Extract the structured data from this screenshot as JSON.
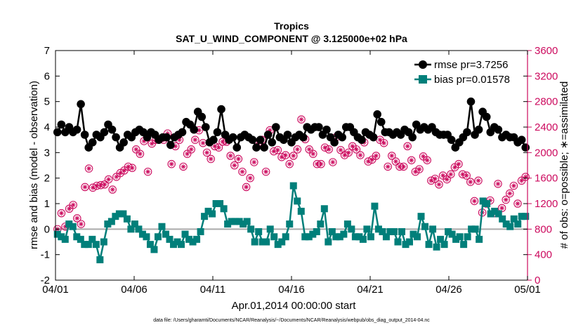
{
  "chart_data": {
    "type": "line",
    "title": "Tropics",
    "subtitle": "SAT_U_WIND_COMPONENT @ 3.125000e+02 hPa",
    "xlabel": "Apr.01,2014 00:00:00 start",
    "ylabel": "rmse and bias (model - observation)",
    "ylabel_right": "# of obs: o=possible; ∗=assimilated",
    "footnote": "data file: /Users/gharamti/Documents/NCAR/Reanalysis/~/Documents/NCAR/Reanalysis/webpub/obs_diag_output_2014-04.nc",
    "xlim": [
      0,
      30
    ],
    "ylim": [
      -2,
      7
    ],
    "ylim_right": [
      0,
      3600
    ],
    "x_ticks": [
      0,
      5,
      10,
      15,
      20,
      25,
      30
    ],
    "x_tick_labels": [
      "04/01",
      "04/06",
      "04/11",
      "04/16",
      "04/21",
      "04/26",
      "05/01"
    ],
    "y_ticks": [
      -2,
      -1,
      0,
      1,
      2,
      3,
      4,
      5,
      6,
      7
    ],
    "y_tick_labels": [
      "-2",
      "-1",
      "0",
      "1",
      "2",
      "3",
      "4",
      "5",
      "6",
      "7"
    ],
    "y_right_ticks": [
      0,
      400,
      800,
      1200,
      1600,
      2000,
      2400,
      2800,
      3200,
      3600
    ],
    "y_right_tick_labels": [
      "0",
      "400",
      "800",
      "1200",
      "1600",
      "2000",
      "2400",
      "2800",
      "3200",
      "3600"
    ],
    "series": [
      {
        "name": "rmse pr=3.7256",
        "color": "#000000",
        "values": [
          3.8,
          4.1,
          3.8,
          4.0,
          3.8,
          3.9,
          4.9,
          3.7,
          3.2,
          3.4,
          3.7,
          3.6,
          3.8,
          4.1,
          3.9,
          3.6,
          3.2,
          3.4,
          3.7,
          3.6,
          3.8,
          3.9,
          3.8,
          3.6,
          3.8,
          3.7,
          3.5,
          3.6,
          3.6,
          3.3,
          3.6,
          3.7,
          3.8,
          4.2,
          4.1,
          3.9,
          4.6,
          4.4,
          4.0,
          3.4,
          3.5,
          3.8,
          4.7,
          3.7,
          3.5,
          3.6,
          3.2,
          3.6,
          3.7,
          3.6,
          3.5,
          3.2,
          3.5,
          3.2,
          3.7,
          3.4,
          4.0,
          3.6,
          3.5,
          3.7,
          3.4,
          3.6,
          3.7,
          3.6,
          4.0,
          3.9,
          4.0,
          4.0,
          3.7,
          3.9,
          3.6,
          3.4,
          3.7,
          3.6,
          4.0,
          4.0,
          3.8,
          3.6,
          3.5,
          3.8,
          3.7,
          3.6,
          4.5,
          4.2,
          3.8,
          3.8,
          3.7,
          3.8,
          3.7,
          3.9,
          3.8,
          3.6,
          4.1,
          3.9,
          4.0,
          3.9,
          4.0,
          3.8,
          3.7,
          3.7,
          3.7,
          3.5,
          3.2,
          3.4,
          3.6,
          3.8,
          5.0,
          3.7,
          3.9,
          4.6,
          4.4,
          3.8,
          4.0,
          3.9,
          3.6,
          3.7,
          3.6,
          3.6,
          3.4,
          3.5,
          3.2
        ]
      },
      {
        "name": "bias pr=0.01578",
        "color": "#007f7a",
        "values": [
          -0.2,
          -0.3,
          -0.4,
          0.2,
          0.1,
          -0.3,
          -0.4,
          -0.6,
          -0.6,
          -0.4,
          -0.6,
          -1.2,
          -0.5,
          0.2,
          0.3,
          0.5,
          0.6,
          0.6,
          0.4,
          0.0,
          0.2,
          0.0,
          -0.2,
          -0.3,
          -0.6,
          -0.8,
          -0.3,
          0.1,
          -0.2,
          -0.4,
          -0.6,
          -0.5,
          -0.6,
          -0.2,
          -0.4,
          -0.5,
          -0.4,
          -0.1,
          0.5,
          0.7,
          0.6,
          1.0,
          1.0,
          0.8,
          0.2,
          0.3,
          0.3,
          0.3,
          0.2,
          0.3,
          0.0,
          -0.5,
          -0.1,
          -0.5,
          -0.5,
          0.0,
          -0.3,
          -0.6,
          -0.5,
          -0.3,
          0.2,
          1.7,
          1.1,
          0.7,
          -0.3,
          -0.3,
          -0.2,
          -0.1,
          0.2,
          0.8,
          -0.5,
          -0.1,
          -0.3,
          -0.3,
          -0.2,
          0.2,
          0.0,
          -0.3,
          -0.3,
          -0.4,
          0.0,
          -0.3,
          0.9,
          0.0,
          -0.1,
          -0.3,
          -0.1,
          -0.1,
          -0.5,
          -0.1,
          -0.6,
          -0.5,
          -0.2,
          -0.3,
          0.5,
          0.1,
          -0.6,
          0.0,
          -0.7,
          -0.4,
          -0.6,
          -0.1,
          -0.2,
          -0.4,
          -0.3,
          -0.6,
          -0.3,
          0.0,
          0.0,
          -0.4,
          1.1,
          1.0,
          0.6,
          0.7,
          0.6,
          0.4,
          0.2,
          0.1,
          0.4,
          0.2,
          0.5,
          0.5
        ]
      },
      {
        "name": "# obs possible",
        "color": "#cc0a5e",
        "axis": "right",
        "values": [
          800,
          1050,
          840,
          1120,
          1180,
          970,
          880,
          1460,
          1750,
          1450,
          1480,
          1490,
          1500,
          1580,
          1420,
          1620,
          1680,
          1720,
          1780,
          1760,
          2050,
          1980,
          2180,
          1700,
          2140,
          2200,
          2210,
          2200,
          2300,
          1820,
          2100,
          2200,
          1780,
          1980,
          2050,
          2200,
          2350,
          2150,
          2000,
          1900,
          2100,
          2080,
          2170,
          2170,
          1950,
          1800,
          1900,
          1700,
          1460,
          1600,
          1850,
          2150,
          2200,
          1700,
          2350,
          2020,
          2040,
          1930,
          1960,
          1820,
          1950,
          2050,
          2520,
          2210,
          2050,
          1980,
          1820,
          1820,
          2080,
          2050,
          1850,
          2250,
          2040,
          1960,
          2000,
          2100,
          2050,
          1960,
          2160,
          1860,
          1890,
          1950,
          2200,
          2150,
          1780,
          1950,
          1860,
          1780,
          1780,
          2100,
          1880,
          1700,
          1740,
          1940,
          1880,
          1560,
          1590,
          1500,
          1640,
          1580,
          1660,
          1770,
          1820,
          1660,
          1640,
          1540,
          1240,
          1560,
          1060,
          1200,
          1250,
          1050,
          1510,
          1130,
          1260,
          1360,
          1480,
          1200,
          1560,
          1620
        ]
      },
      {
        "name": "# obs assimilated",
        "color": "#cc0a5e",
        "axis": "right",
        "values": [
          800,
          1050,
          840,
          1120,
          1180,
          970,
          880,
          1460,
          1750,
          1450,
          1480,
          1490,
          1500,
          1580,
          1420,
          1620,
          1680,
          1720,
          1780,
          1760,
          2050,
          1980,
          2180,
          1700,
          2140,
          2200,
          2210,
          2200,
          2300,
          1820,
          2100,
          2200,
          1780,
          1980,
          2050,
          2200,
          2350,
          2150,
          2000,
          1900,
          2100,
          2080,
          2170,
          2170,
          1950,
          1800,
          1900,
          1700,
          1460,
          1600,
          1850,
          2150,
          2200,
          1700,
          2350,
          2020,
          2040,
          1930,
          1960,
          1820,
          1950,
          2050,
          2520,
          2210,
          2050,
          1980,
          1820,
          1820,
          2080,
          2050,
          1850,
          2250,
          2040,
          1960,
          2000,
          2100,
          2050,
          1960,
          2160,
          1860,
          1890,
          1950,
          2200,
          2150,
          1780,
          1950,
          1860,
          1780,
          1780,
          2100,
          1880,
          1700,
          1740,
          1940,
          1880,
          1560,
          1590,
          1500,
          1640,
          1580,
          1660,
          1770,
          1820,
          1660,
          1640,
          1540,
          1240,
          1560,
          1060,
          1200,
          1250,
          1050,
          1510,
          1130,
          1260,
          1360,
          1480,
          1200,
          1560,
          1620
        ]
      }
    ],
    "legend_position": "top-right",
    "zero_line": 0
  }
}
